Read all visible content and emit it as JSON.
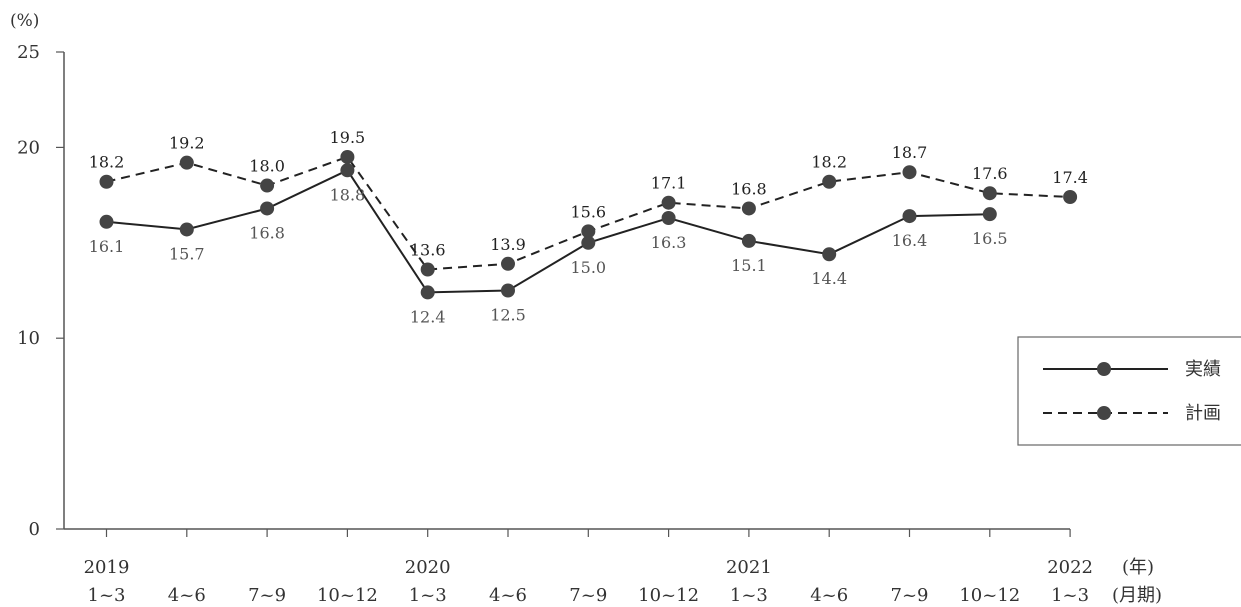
{
  "chart_data": {
    "type": "line",
    "y_unit": "(%)",
    "ylim": [
      0,
      25
    ],
    "yticks": [
      0,
      10,
      20,
      25
    ],
    "categories": [
      "1~3",
      "4~6",
      "7~9",
      "10~12",
      "1~3",
      "4~6",
      "7~9",
      "10~12",
      "1~3",
      "4~6",
      "7~9",
      "10~12",
      "1~3"
    ],
    "years": [
      {
        "index": 0,
        "label": "2019"
      },
      {
        "index": 4,
        "label": "2020"
      },
      {
        "index": 8,
        "label": "2021"
      },
      {
        "index": 12,
        "label": "2022"
      }
    ],
    "x_unit_year": "(年)",
    "x_unit_period": "(月期)",
    "series": [
      {
        "name": "実績",
        "style": "solid",
        "values": [
          16.1,
          15.7,
          16.8,
          18.8,
          12.4,
          12.5,
          15.0,
          16.3,
          15.1,
          14.4,
          16.4,
          16.5,
          null
        ],
        "labels": [
          "16.1",
          "15.7",
          "16.8",
          "18.8",
          "12.4",
          "12.5",
          "15.0",
          "16.3",
          "15.1",
          "14.4",
          "16.4",
          "16.5",
          ""
        ]
      },
      {
        "name": "計画",
        "style": "dashed",
        "values": [
          18.2,
          19.2,
          18.0,
          19.5,
          13.6,
          13.9,
          15.6,
          17.1,
          16.8,
          18.2,
          18.7,
          17.6,
          17.4
        ],
        "labels": [
          "18.2",
          "19.2",
          "18.0",
          "19.5",
          "13.6",
          "13.9",
          "15.6",
          "17.1",
          "16.8",
          "18.2",
          "18.7",
          "17.6",
          "17.4"
        ]
      }
    ],
    "legend_position": "right",
    "grid": false,
    "colors": {
      "line": "#222222",
      "marker": "#444444",
      "axis": "#555555"
    }
  }
}
